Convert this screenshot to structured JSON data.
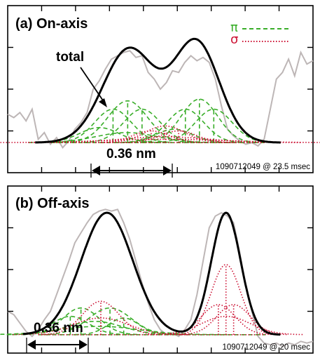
{
  "colors": {
    "total": "#000000",
    "pi": "#3aae2a",
    "sigma": "#cc1133",
    "measured": "#bdb6b6",
    "frame": "#000000"
  },
  "chart_data": [
    {
      "type": "line",
      "title": "(a) On-axis",
      "annotation_total": "total",
      "scale_label": "0.36 nm",
      "footer": "1090712049 @ 23.5 msec",
      "legend": [
        {
          "label": "π",
          "style": "dashed",
          "color": "#3aae2a"
        },
        {
          "label": "σ",
          "style": "dotted",
          "color": "#cc1133"
        }
      ],
      "legend_position": "top-right",
      "grid": false,
      "axes_labels_shown": false,
      "xlim": [
        0,
        1
      ],
      "ylim": [
        0,
        1
      ],
      "baseline": 0.18,
      "total_gaussians": [
        {
          "center": 0.397,
          "amp": 0.56,
          "width": 0.085
        },
        {
          "center": 0.618,
          "amp": 0.6,
          "width": 0.075
        }
      ],
      "total_range": [
        0.09,
        0.895
      ],
      "pi_components": [
        {
          "center": 0.393,
          "amp": 0.25,
          "width": 0.065,
          "line": true
        },
        {
          "center": 0.345,
          "amp": 0.2,
          "width": 0.06,
          "line": true
        },
        {
          "center": 0.44,
          "amp": 0.2,
          "width": 0.06,
          "line": true
        },
        {
          "center": 0.3,
          "amp": 0.09,
          "width": 0.065,
          "line": false
        },
        {
          "center": 0.39,
          "amp": 0.06,
          "width": 0.1,
          "line": false
        },
        {
          "center": 0.628,
          "amp": 0.26,
          "width": 0.06,
          "line": true
        },
        {
          "center": 0.582,
          "amp": 0.2,
          "width": 0.06,
          "line": true
        },
        {
          "center": 0.675,
          "amp": 0.2,
          "width": 0.06,
          "line": true
        },
        {
          "center": 0.545,
          "amp": 0.08,
          "width": 0.06,
          "line": false
        }
      ],
      "sigma_components": [
        {
          "center": 0.515,
          "amp": 0.1,
          "width": 0.065,
          "line": true
        },
        {
          "center": 0.47,
          "amp": 0.07,
          "width": 0.06,
          "line": true
        },
        {
          "center": 0.56,
          "amp": 0.07,
          "width": 0.06,
          "line": true
        },
        {
          "center": 0.515,
          "amp": 0.035,
          "width": 0.14,
          "line": false
        },
        {
          "center": 0.515,
          "amp": 0.02,
          "width": 0.2,
          "line": false
        }
      ],
      "measured": [
        [
          0.0,
          0.35
        ],
        [
          0.02,
          0.33
        ],
        [
          0.04,
          0.36
        ],
        [
          0.06,
          0.31
        ],
        [
          0.08,
          0.38
        ],
        [
          0.1,
          0.2
        ],
        [
          0.12,
          0.24
        ],
        [
          0.14,
          0.17
        ],
        [
          0.16,
          0.21
        ],
        [
          0.18,
          0.15
        ],
        [
          0.2,
          0.19
        ],
        [
          0.22,
          0.26
        ],
        [
          0.24,
          0.3
        ],
        [
          0.26,
          0.36
        ],
        [
          0.28,
          0.5
        ],
        [
          0.3,
          0.55
        ],
        [
          0.32,
          0.62
        ],
        [
          0.34,
          0.68
        ],
        [
          0.36,
          0.7
        ],
        [
          0.38,
          0.72
        ],
        [
          0.4,
          0.73
        ],
        [
          0.42,
          0.69
        ],
        [
          0.44,
          0.7
        ],
        [
          0.46,
          0.6
        ],
        [
          0.48,
          0.56
        ],
        [
          0.5,
          0.5
        ],
        [
          0.52,
          0.54
        ],
        [
          0.54,
          0.61
        ],
        [
          0.56,
          0.6
        ],
        [
          0.58,
          0.66
        ],
        [
          0.6,
          0.7
        ],
        [
          0.62,
          0.67
        ],
        [
          0.64,
          0.69
        ],
        [
          0.66,
          0.66
        ],
        [
          0.68,
          0.56
        ],
        [
          0.7,
          0.4
        ],
        [
          0.72,
          0.26
        ],
        [
          0.74,
          0.22
        ],
        [
          0.76,
          0.19
        ],
        [
          0.78,
          0.17
        ],
        [
          0.8,
          0.18
        ],
        [
          0.82,
          0.16
        ],
        [
          0.84,
          0.2
        ],
        [
          0.86,
          0.38
        ],
        [
          0.88,
          0.56
        ],
        [
          0.9,
          0.6
        ],
        [
          0.92,
          0.68
        ],
        [
          0.94,
          0.58
        ],
        [
          0.96,
          0.72
        ],
        [
          0.98,
          0.65
        ],
        [
          1.0,
          0.67
        ]
      ]
    },
    {
      "type": "line",
      "title": "(b) Off-axis",
      "scale_label": "0.36 nm",
      "footer": "1090712049 @ 20 msec",
      "grid": false,
      "axes_labels_shown": false,
      "xlim": [
        0,
        1
      ],
      "ylim": [
        0,
        1
      ],
      "baseline": 0.11,
      "total_gaussians": [
        {
          "center": 0.325,
          "amp": 0.73,
          "width": 0.085
        },
        {
          "center": 0.715,
          "amp": 0.73,
          "width": 0.048
        }
      ],
      "total_range": [
        0.05,
        0.895
      ],
      "pi_components": [
        {
          "center": 0.24,
          "amp": 0.16,
          "width": 0.06,
          "line": true
        },
        {
          "center": 0.335,
          "amp": 0.16,
          "width": 0.07,
          "line": true
        },
        {
          "center": 0.205,
          "amp": 0.11,
          "width": 0.06,
          "line": true
        },
        {
          "center": 0.38,
          "amp": 0.1,
          "width": 0.05,
          "line": true
        },
        {
          "center": 0.285,
          "amp": 0.08,
          "width": 0.09,
          "line": false
        },
        {
          "center": 0.3,
          "amp": 0.05,
          "width": 0.13,
          "line": false
        }
      ],
      "sigma_components": [
        {
          "center": 0.305,
          "amp": 0.2,
          "width": 0.06,
          "line": true
        },
        {
          "center": 0.305,
          "amp": 0.1,
          "width": 0.09,
          "line": true
        },
        {
          "center": 0.715,
          "amp": 0.42,
          "width": 0.048,
          "line": true
        },
        {
          "center": 0.69,
          "amp": 0.18,
          "width": 0.055,
          "line": true
        },
        {
          "center": 0.74,
          "amp": 0.18,
          "width": 0.055,
          "line": true
        },
        {
          "center": 0.715,
          "amp": 0.11,
          "width": 0.08,
          "line": false
        }
      ],
      "measured": [
        [
          0.0,
          0.25
        ],
        [
          0.02,
          0.23
        ],
        [
          0.04,
          0.18
        ],
        [
          0.06,
          0.13
        ],
        [
          0.08,
          0.1
        ],
        [
          0.1,
          0.14
        ],
        [
          0.12,
          0.2
        ],
        [
          0.14,
          0.25
        ],
        [
          0.16,
          0.35
        ],
        [
          0.18,
          0.45
        ],
        [
          0.2,
          0.55
        ],
        [
          0.22,
          0.66
        ],
        [
          0.24,
          0.72
        ],
        [
          0.26,
          0.78
        ],
        [
          0.28,
          0.83
        ],
        [
          0.3,
          0.85
        ],
        [
          0.32,
          0.86
        ],
        [
          0.34,
          0.85
        ],
        [
          0.36,
          0.86
        ],
        [
          0.38,
          0.78
        ],
        [
          0.4,
          0.68
        ],
        [
          0.42,
          0.55
        ],
        [
          0.44,
          0.42
        ],
        [
          0.46,
          0.3
        ],
        [
          0.48,
          0.2
        ],
        [
          0.5,
          0.14
        ],
        [
          0.52,
          0.11
        ],
        [
          0.54,
          0.12
        ],
        [
          0.56,
          0.1
        ],
        [
          0.58,
          0.14
        ],
        [
          0.6,
          0.2
        ],
        [
          0.62,
          0.35
        ],
        [
          0.64,
          0.55
        ],
        [
          0.66,
          0.75
        ],
        [
          0.68,
          0.82
        ],
        [
          0.7,
          0.84
        ],
        [
          0.72,
          0.82
        ],
        [
          0.74,
          0.78
        ],
        [
          0.76,
          0.6
        ],
        [
          0.78,
          0.4
        ],
        [
          0.8,
          0.25
        ],
        [
          0.82,
          0.1
        ],
        [
          0.84,
          0.06
        ],
        [
          0.86,
          0.05
        ],
        [
          0.88,
          0.06
        ],
        [
          0.9,
          0.04
        ],
        [
          0.92,
          0.06
        ],
        [
          0.94,
          0.05
        ],
        [
          0.96,
          0.07
        ],
        [
          0.98,
          0.06
        ],
        [
          1.0,
          0.07
        ]
      ]
    }
  ]
}
